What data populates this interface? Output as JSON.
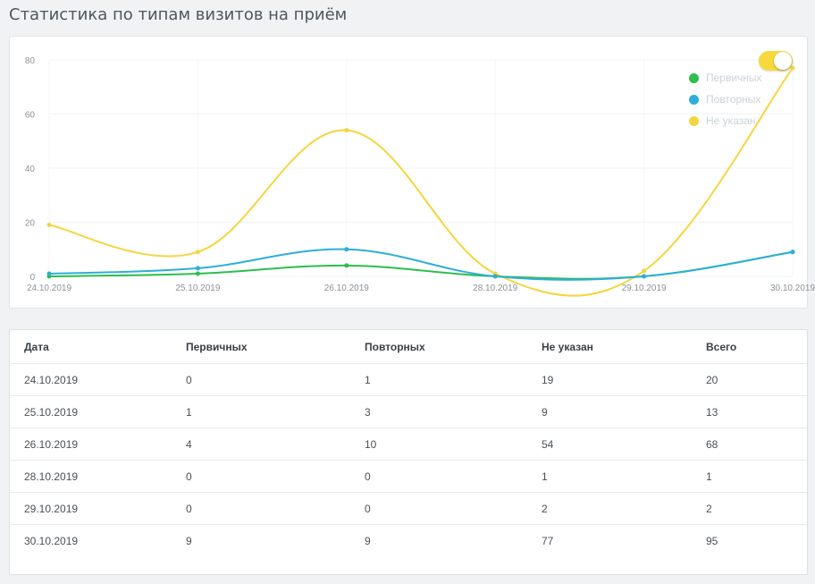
{
  "page": {
    "title": "Статистика по типам визитов на приём"
  },
  "chart_data": {
    "type": "line",
    "x": [
      "24.10.2019",
      "25.10.2019",
      "26.10.2019",
      "28.10.2019",
      "29.10.2019",
      "30.10.2019"
    ],
    "ylim": [
      0,
      80
    ],
    "yticks": [
      0,
      20,
      40,
      60,
      80
    ],
    "grid": true,
    "legend_position": "top-right",
    "series": [
      {
        "name": "Первичных",
        "color": "#2dbe4e",
        "values": [
          0,
          1,
          4,
          0,
          0,
          9
        ]
      },
      {
        "name": "Повторных",
        "color": "#2eaed8",
        "values": [
          1,
          3,
          10,
          0,
          0,
          9
        ]
      },
      {
        "name": "Не указан",
        "color": "#f5d53f",
        "values": [
          19,
          9,
          54,
          1,
          2,
          77
        ]
      }
    ]
  },
  "toggle": {
    "on": true,
    "color": "#f7d93c"
  },
  "table": {
    "headers": [
      "Дата",
      "Первичных",
      "Повторных",
      "Не указан",
      "Всего"
    ],
    "rows": [
      [
        "24.10.2019",
        "0",
        "1",
        "19",
        "20"
      ],
      [
        "25.10.2019",
        "1",
        "3",
        "9",
        "13"
      ],
      [
        "26.10.2019",
        "4",
        "10",
        "54",
        "68"
      ],
      [
        "28.10.2019",
        "0",
        "0",
        "1",
        "1"
      ],
      [
        "29.10.2019",
        "0",
        "0",
        "2",
        "2"
      ],
      [
        "30.10.2019",
        "9",
        "9",
        "77",
        "95"
      ]
    ]
  }
}
